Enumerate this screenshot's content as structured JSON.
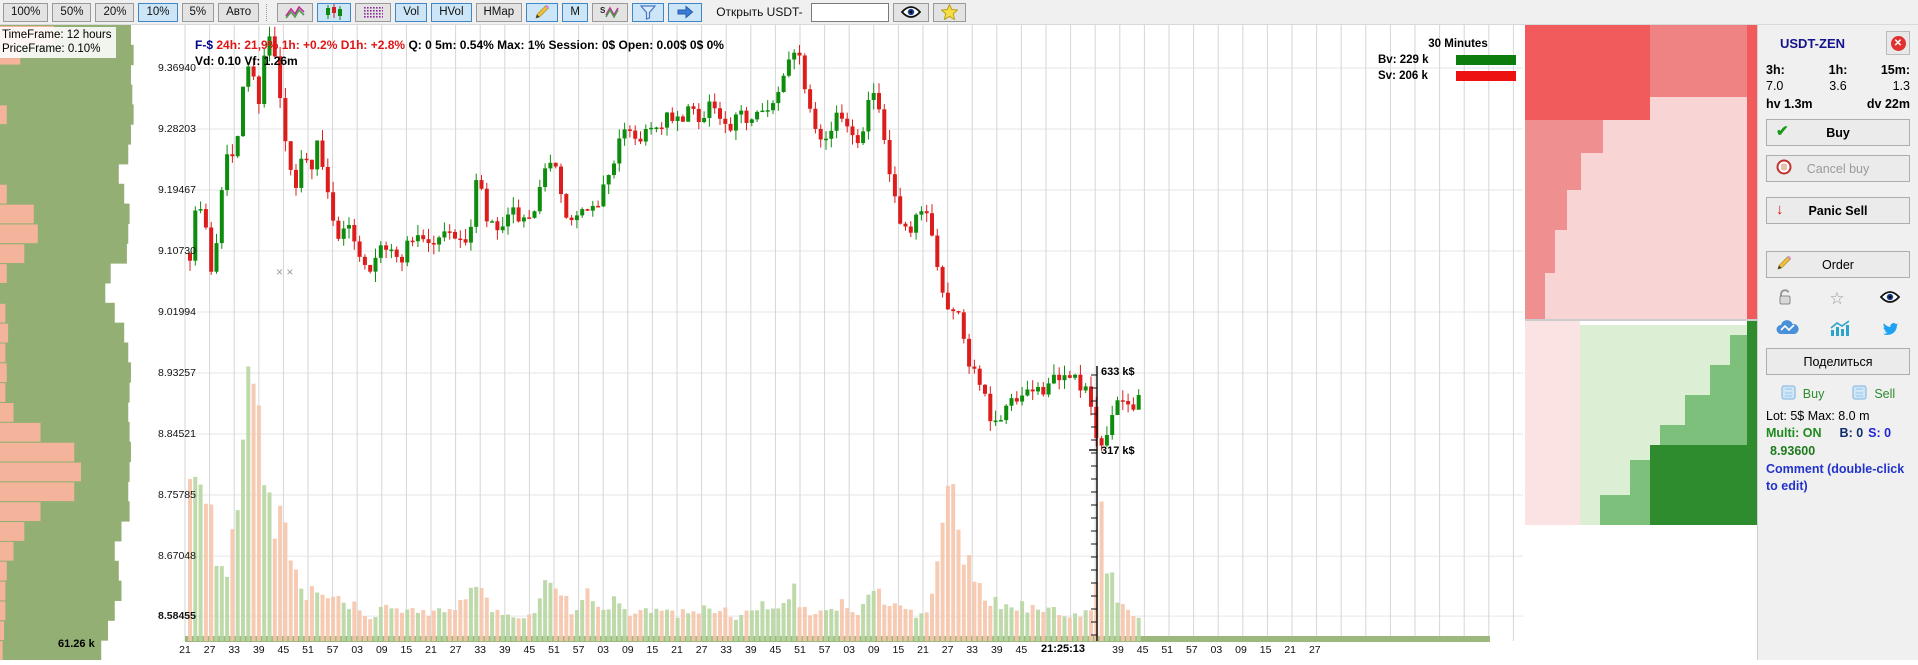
{
  "colors": {
    "candle_up": "#0d8c0d",
    "candle_down": "#dd1c1c",
    "vol_up": "#b7d6a2",
    "vol_down": "#f6c5ab",
    "profile_green": "#93af74",
    "profile_salmon": "#f4b49b",
    "grid": "#d6d6d6",
    "hgrid": "#e6e6e6",
    "legend_bv": "#0d7e0d",
    "legend_sv": "#ee1111",
    "accent_active": "#cde6f7"
  },
  "toolbar": {
    "items": [
      {
        "label": "100%",
        "active": false
      },
      {
        "label": "50%",
        "active": false
      },
      {
        "label": "20%",
        "active": false
      },
      {
        "label": "10%",
        "active": true
      },
      {
        "label": "5%",
        "active": false
      },
      {
        "label": "Авто",
        "active": false
      },
      {
        "sep": true
      },
      {
        "icon": "trend-lines",
        "active": false
      },
      {
        "icon": "candles",
        "active": true
      },
      {
        "icon": "dotted-rows",
        "active": false
      },
      {
        "label": "Vol",
        "active": true
      },
      {
        "label": "HVol",
        "active": true
      },
      {
        "label": "HMap",
        "active": false
      },
      {
        "icon": "pencil",
        "active": true
      },
      {
        "label": "M",
        "active": true
      },
      {
        "icon": "sv-lines",
        "active": false
      },
      {
        "icon": "filter",
        "active": true
      },
      {
        "icon": "arrow-right",
        "active": true
      }
    ],
    "open_label": "Открыть USDT-",
    "search_value": "",
    "tail_icons": [
      {
        "icon": "eye"
      },
      {
        "icon": "star"
      }
    ]
  },
  "overlay": {
    "timeframe": "TimeFrame: 12 hours",
    "priceframe": "PriceFrame: 0.10%"
  },
  "chart": {
    "header": {
      "f": "F-$",
      "red": "24h: 21,9%  1h: +0.2%  D1h: +2.8%",
      "black": "Q: 0  5m: 0.54%  Max: 1%  Session: 0$  Open: 0.00$  0$  0%",
      "line2": "Vd: 0.10 Vf: 1.26m"
    },
    "legend": {
      "title": "30 Minutes",
      "bv": "Bv: 229 k",
      "sv": "Sv: 206 k"
    },
    "bottom_total": "61.26 k",
    "measure_labels": [
      "633 k$",
      "317 k$"
    ],
    "cursor_marks": "× ×"
  },
  "chart_data": {
    "type": "candlestick",
    "title": "USDT-ZEN 30 Minutes",
    "price_labels": [
      "9.36940",
      "9.28203",
      "9.19467",
      "9.10730",
      "9.01994",
      "8.93257",
      "8.84521",
      "8.75785",
      "8.67048",
      "8.58455"
    ],
    "ylim": [
      8.58455,
      9.3694
    ],
    "time_axis": {
      "pre": [
        "21",
        "27",
        "33",
        "39",
        "45",
        "51",
        "57",
        "03",
        "09",
        "15",
        "21",
        "27",
        "33",
        "39",
        "45",
        "51",
        "57",
        "03",
        "09",
        "15",
        "21",
        "27",
        "33",
        "39",
        "45",
        "51",
        "57",
        "03",
        "09",
        "15",
        "21",
        "27",
        "33",
        "39",
        "45"
      ],
      "current": "21:25:13",
      "post": [
        "39",
        "45",
        "51",
        "57",
        "03",
        "09",
        "15",
        "21",
        "27"
      ]
    },
    "price_path": [
      [
        190,
        9.14
      ],
      [
        197,
        9.22
      ],
      [
        205,
        9.18
      ],
      [
        213,
        9.1
      ],
      [
        220,
        9.22
      ],
      [
        228,
        9.3
      ],
      [
        235,
        9.26
      ],
      [
        243,
        9.38
      ],
      [
        250,
        9.42
      ],
      [
        258,
        9.35
      ],
      [
        265,
        9.44
      ],
      [
        272,
        9.45
      ],
      [
        280,
        9.36
      ],
      [
        287,
        9.28
      ],
      [
        295,
        9.22
      ],
      [
        302,
        9.28
      ],
      [
        310,
        9.26
      ],
      [
        317,
        9.3
      ],
      [
        325,
        9.24
      ],
      [
        332,
        9.2
      ],
      [
        340,
        9.16
      ],
      [
        350,
        9.18
      ],
      [
        360,
        9.14
      ],
      [
        370,
        9.12
      ],
      [
        380,
        9.16
      ],
      [
        390,
        9.14
      ],
      [
        400,
        9.13
      ],
      [
        410,
        9.16
      ],
      [
        420,
        9.17
      ],
      [
        430,
        9.15
      ],
      [
        440,
        9.16
      ],
      [
        450,
        9.18
      ],
      [
        460,
        9.15
      ],
      [
        470,
        9.17
      ],
      [
        478,
        9.26
      ],
      [
        485,
        9.19
      ],
      [
        495,
        9.17
      ],
      [
        505,
        9.18
      ],
      [
        515,
        9.2
      ],
      [
        525,
        9.18
      ],
      [
        535,
        9.19
      ],
      [
        545,
        9.27
      ],
      [
        553,
        9.28
      ],
      [
        560,
        9.22
      ],
      [
        570,
        9.18
      ],
      [
        580,
        9.2
      ],
      [
        590,
        9.19
      ],
      [
        600,
        9.22
      ],
      [
        610,
        9.26
      ],
      [
        620,
        9.3
      ],
      [
        630,
        9.32
      ],
      [
        640,
        9.3
      ],
      [
        650,
        9.33
      ],
      [
        660,
        9.31
      ],
      [
        670,
        9.34
      ],
      [
        680,
        9.32
      ],
      [
        690,
        9.35
      ],
      [
        700,
        9.33
      ],
      [
        710,
        9.36
      ],
      [
        720,
        9.33
      ],
      [
        730,
        9.31
      ],
      [
        740,
        9.34
      ],
      [
        750,
        9.33
      ],
      [
        760,
        9.36
      ],
      [
        770,
        9.34
      ],
      [
        780,
        9.37
      ],
      [
        790,
        9.43
      ],
      [
        797,
        9.44
      ],
      [
        805,
        9.38
      ],
      [
        815,
        9.33
      ],
      [
        825,
        9.3
      ],
      [
        835,
        9.33
      ],
      [
        845,
        9.34
      ],
      [
        855,
        9.3
      ],
      [
        865,
        9.33
      ],
      [
        872,
        9.38
      ],
      [
        880,
        9.33
      ],
      [
        890,
        9.25
      ],
      [
        900,
        9.18
      ],
      [
        910,
        9.16
      ],
      [
        920,
        9.2
      ],
      [
        930,
        9.19
      ],
      [
        940,
        9.1
      ],
      [
        950,
        9.06
      ],
      [
        960,
        9.05
      ],
      [
        970,
        8.98
      ],
      [
        980,
        8.96
      ],
      [
        990,
        8.9
      ],
      [
        1000,
        8.89
      ],
      [
        1010,
        8.93
      ],
      [
        1020,
        8.92
      ],
      [
        1030,
        8.95
      ],
      [
        1040,
        8.94
      ],
      [
        1050,
        8.96
      ],
      [
        1060,
        8.95
      ],
      [
        1070,
        8.97
      ],
      [
        1080,
        8.95
      ],
      [
        1090,
        8.93
      ],
      [
        1098,
        8.85
      ],
      [
        1105,
        8.88
      ],
      [
        1113,
        8.91
      ],
      [
        1122,
        8.93
      ],
      [
        1131,
        8.92
      ],
      [
        1140,
        8.94
      ]
    ],
    "volume_path": [
      [
        190,
        0.3
      ],
      [
        198,
        0.4
      ],
      [
        205,
        0.3
      ],
      [
        212,
        0.22
      ],
      [
        220,
        0.14
      ],
      [
        228,
        0.12
      ],
      [
        236,
        0.25
      ],
      [
        244,
        0.38
      ],
      [
        251,
        0.52
      ],
      [
        256,
        0.57
      ],
      [
        262,
        0.44
      ],
      [
        268,
        0.28
      ],
      [
        275,
        0.2
      ],
      [
        283,
        0.26
      ],
      [
        290,
        0.18
      ],
      [
        297,
        0.11
      ],
      [
        305,
        0.09
      ],
      [
        315,
        0.1
      ],
      [
        325,
        0.07
      ],
      [
        335,
        0.09
      ],
      [
        345,
        0.06
      ],
      [
        355,
        0.07
      ],
      [
        365,
        0.05
      ],
      [
        378,
        0.06
      ],
      [
        390,
        0.07
      ],
      [
        402,
        0.05
      ],
      [
        415,
        0.06
      ],
      [
        428,
        0.05
      ],
      [
        440,
        0.07
      ],
      [
        452,
        0.05
      ],
      [
        465,
        0.08
      ],
      [
        476,
        0.12
      ],
      [
        488,
        0.07
      ],
      [
        500,
        0.05
      ],
      [
        512,
        0.06
      ],
      [
        524,
        0.05
      ],
      [
        536,
        0.06
      ],
      [
        545,
        0.12
      ],
      [
        554,
        0.1
      ],
      [
        564,
        0.08
      ],
      [
        574,
        0.06
      ],
      [
        584,
        0.1
      ],
      [
        594,
        0.07
      ],
      [
        604,
        0.06
      ],
      [
        614,
        0.08
      ],
      [
        624,
        0.06
      ],
      [
        634,
        0.05
      ],
      [
        644,
        0.06
      ],
      [
        654,
        0.05
      ],
      [
        664,
        0.07
      ],
      [
        674,
        0.05
      ],
      [
        684,
        0.06
      ],
      [
        694,
        0.05
      ],
      [
        704,
        0.07
      ],
      [
        714,
        0.05
      ],
      [
        724,
        0.06
      ],
      [
        734,
        0.05
      ],
      [
        744,
        0.06
      ],
      [
        754,
        0.05
      ],
      [
        764,
        0.07
      ],
      [
        774,
        0.06
      ],
      [
        784,
        0.08
      ],
      [
        794,
        0.1
      ],
      [
        804,
        0.07
      ],
      [
        814,
        0.06
      ],
      [
        824,
        0.05
      ],
      [
        834,
        0.06
      ],
      [
        844,
        0.08
      ],
      [
        854,
        0.06
      ],
      [
        864,
        0.07
      ],
      [
        874,
        0.1
      ],
      [
        884,
        0.08
      ],
      [
        894,
        0.07
      ],
      [
        904,
        0.06
      ],
      [
        914,
        0.05
      ],
      [
        924,
        0.06
      ],
      [
        934,
        0.09
      ],
      [
        941,
        0.2
      ],
      [
        947,
        0.3
      ],
      [
        953,
        0.27
      ],
      [
        960,
        0.2
      ],
      [
        968,
        0.15
      ],
      [
        976,
        0.12
      ],
      [
        984,
        0.1
      ],
      [
        992,
        0.08
      ],
      [
        1002,
        0.07
      ],
      [
        1012,
        0.06
      ],
      [
        1022,
        0.08
      ],
      [
        1032,
        0.06
      ],
      [
        1042,
        0.07
      ],
      [
        1052,
        0.06
      ],
      [
        1062,
        0.05
      ],
      [
        1072,
        0.06
      ],
      [
        1082,
        0.05
      ],
      [
        1090,
        0.07
      ],
      [
        1096,
        0.1
      ],
      [
        1099,
        0.56
      ],
      [
        1103,
        0.22
      ],
      [
        1108,
        0.14
      ],
      [
        1116,
        0.1
      ],
      [
        1124,
        0.07
      ],
      [
        1132,
        0.06
      ],
      [
        1140,
        0.05
      ]
    ],
    "profile_rows": [
      [
        0.97,
        0.4
      ],
      [
        0.99,
        0.15
      ],
      [
        0.97,
        0.0
      ],
      [
        0.98,
        0.0
      ],
      [
        0.99,
        0.05
      ],
      [
        0.97,
        0.0
      ],
      [
        0.95,
        0.0
      ],
      [
        0.88,
        0.0
      ],
      [
        0.92,
        0.05
      ],
      [
        0.96,
        0.25
      ],
      [
        0.95,
        0.28
      ],
      [
        0.94,
        0.18
      ],
      [
        0.82,
        0.05
      ],
      [
        0.78,
        0.0
      ],
      [
        0.85,
        0.04
      ],
      [
        0.92,
        0.06
      ],
      [
        0.95,
        0.04
      ],
      [
        0.97,
        0.05
      ],
      [
        0.96,
        0.04
      ],
      [
        0.95,
        0.1
      ],
      [
        0.96,
        0.3
      ],
      [
        0.97,
        0.55
      ],
      [
        0.96,
        0.6
      ],
      [
        0.95,
        0.55
      ],
      [
        0.96,
        0.3
      ],
      [
        0.9,
        0.18
      ],
      [
        0.85,
        0.1
      ],
      [
        0.88,
        0.05
      ],
      [
        0.9,
        0.04
      ],
      [
        0.85,
        0.04
      ],
      [
        0.8,
        0.03
      ],
      [
        0.75,
        0.02
      ]
    ],
    "depth_shapes": [
      {
        "t": "rect",
        "v": [
          0,
          0,
          232,
          294
        ],
        "f": "#f9d4d4"
      },
      {
        "t": "rect",
        "v": [
          125,
          0,
          107,
          72
        ],
        "f": "#ef8383"
      },
      {
        "t": "rect",
        "v": [
          0,
          0,
          125,
          95
        ],
        "f": "#f25b5b"
      },
      {
        "t": "poly",
        "v": [
          [
            0,
            95
          ],
          [
            78,
            95
          ],
          [
            78,
            128
          ],
          [
            56,
            128
          ],
          [
            56,
            165
          ],
          [
            42,
            165
          ],
          [
            42,
            205
          ],
          [
            30,
            205
          ],
          [
            30,
            248
          ],
          [
            20,
            248
          ],
          [
            20,
            294
          ],
          [
            0,
            294
          ]
        ],
        "f": "#ef8f8f"
      },
      {
        "t": "rect",
        "v": [
          222,
          0,
          10,
          294
        ],
        "f": "#f25b5b"
      },
      {
        "t": "rect",
        "v": [
          0,
          294,
          232,
          2
        ],
        "f": "#cccccc"
      },
      {
        "t": "rect",
        "v": [
          0,
          296,
          55,
          204
        ],
        "f": "#fbe3e3"
      },
      {
        "t": "rect",
        "v": [
          55,
          300,
          177,
          200
        ],
        "f": "#dcefd5"
      },
      {
        "t": "poly",
        "v": [
          [
            232,
            310
          ],
          [
            205,
            310
          ],
          [
            205,
            340
          ],
          [
            185,
            340
          ],
          [
            185,
            370
          ],
          [
            160,
            370
          ],
          [
            160,
            400
          ],
          [
            135,
            400
          ],
          [
            135,
            435
          ],
          [
            105,
            435
          ],
          [
            105,
            470
          ],
          [
            75,
            470
          ],
          [
            75,
            500
          ],
          [
            232,
            500
          ]
        ],
        "f": "#7cc07c"
      },
      {
        "t": "rect",
        "v": [
          125,
          420,
          107,
          80
        ],
        "f": "#2e8b2e"
      },
      {
        "t": "rect",
        "v": [
          222,
          296,
          10,
          204
        ],
        "f": "#2e8b2e"
      }
    ]
  },
  "trade": {
    "title": "USDT-ZEN",
    "close": "✕",
    "stats": {
      "h3_label": "3h:",
      "h1_label": "1h:",
      "m15_label": "15m:",
      "h3": "7.0",
      "h1": "3.6",
      "m15": "1.3",
      "hv": "hv 1.3m",
      "dv": "dv 22m"
    },
    "buttons": {
      "buy": "Buy",
      "cancel": "Cancel buy",
      "panic": "Panic Sell",
      "order": "Order",
      "share": "Поделиться"
    },
    "quick": {
      "buy": "Buy",
      "sell": "Sell"
    },
    "lot": "Lot: 5$  Max: 8.0 m",
    "multi": "Multi: ON",
    "b": "B: 0",
    "s": "S: 0",
    "price": "8.93600",
    "comment": "Comment (double-click to edit)"
  }
}
